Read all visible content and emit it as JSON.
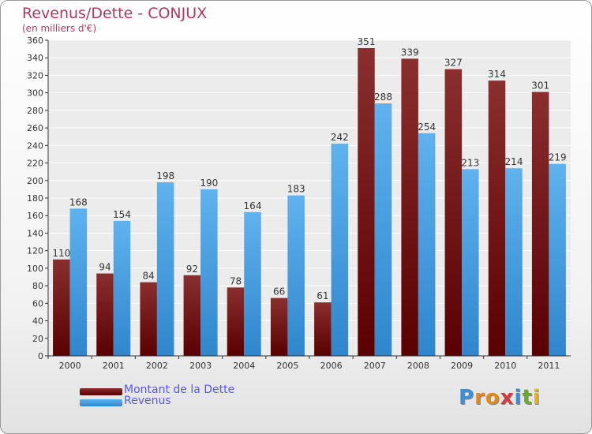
{
  "chart_title": "Revenus/Dette - CONJUX",
  "chart_subtitle": "(en milliers d'€)",
  "logo_text": "Proxiti",
  "colors": {
    "title": "#b03a5c",
    "dette": "#7a1a1a",
    "revenus": "#4aa3e6",
    "legend_text": "#5a57e6"
  },
  "chart_data": {
    "type": "bar",
    "title": "Revenus/Dette - CONJUX",
    "subtitle": "(en milliers d'€)",
    "xlabel": "",
    "ylabel": "",
    "categories": [
      "2000",
      "2001",
      "2002",
      "2003",
      "2004",
      "2005",
      "2006",
      "2007",
      "2008",
      "2009",
      "2010",
      "2011"
    ],
    "series": [
      {
        "name": "Montant de la Dette",
        "values": [
          110,
          94,
          84,
          92,
          78,
          66,
          61,
          351,
          339,
          327,
          314,
          301
        ]
      },
      {
        "name": "Revenus",
        "values": [
          168,
          154,
          198,
          190,
          164,
          183,
          242,
          288,
          254,
          213,
          214,
          219
        ]
      }
    ],
    "ylim": [
      0,
      360
    ],
    "yticks": [
      0,
      20,
      40,
      60,
      80,
      100,
      120,
      140,
      160,
      180,
      200,
      220,
      240,
      260,
      280,
      300,
      320,
      340,
      360
    ],
    "grid": true,
    "legend_position": "bottom-left"
  }
}
